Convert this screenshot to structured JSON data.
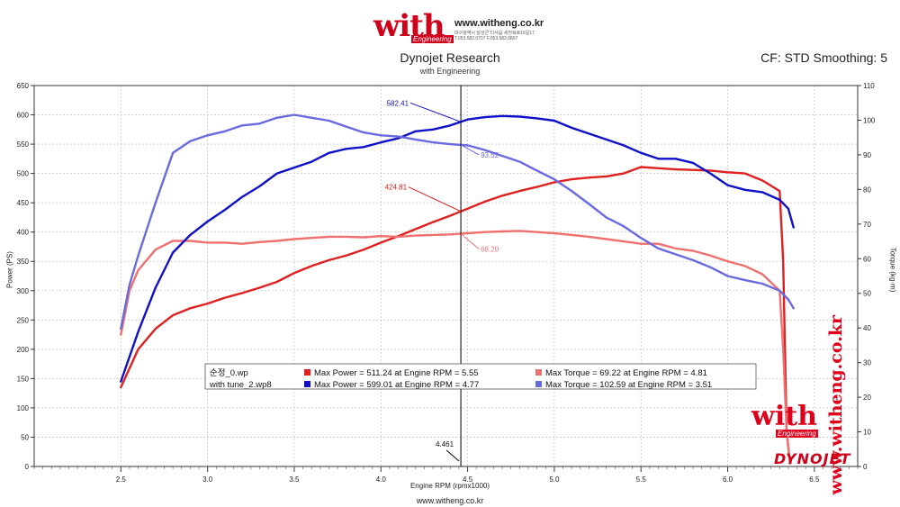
{
  "header": {
    "logo_text": "with",
    "logo_sub": "Engineering",
    "url": "www.witheng.co.kr",
    "contact_line1": "대구광역시 달성군 다사읍 세천북로16길17",
    "contact_line2": "T.053.582.0707 F.053.582.0807"
  },
  "title": "Dynojet Research",
  "subtitle": "with Engineering",
  "cf_info": "CF: STD Smoothing: 5",
  "footer_url": "www.witheng.co.kr",
  "watermark": {
    "vertical": "www.witheng.co.kr",
    "with": "with",
    "engineering": "Engineering",
    "brand": "DYNOJET"
  },
  "colors": {
    "power_before": "#e02020",
    "torque_before": "#f07070",
    "power_after": "#1010c8",
    "torque_after": "#6a6ae0"
  },
  "chart_data": {
    "type": "line",
    "xlabel": "Engine RPM (rpmx1000)",
    "ylabel_left": "Power (PS)",
    "ylabel_right": "Torque (kg·m)",
    "xlim": [
      2.0,
      6.75
    ],
    "ylim_left": [
      0,
      650
    ],
    "ylim_right": [
      0,
      110
    ],
    "x_ticks": [
      "2.5",
      "3.0",
      "3.5",
      "4.0",
      "4.5",
      "5.0",
      "5.5",
      "6.0",
      "6.5"
    ],
    "y_left_ticks": [
      "0",
      "50",
      "100",
      "150",
      "200",
      "250",
      "300",
      "350",
      "400",
      "450",
      "500",
      "550",
      "600",
      "650"
    ],
    "y_right_ticks": [
      "0",
      "10",
      "20",
      "30",
      "40",
      "50",
      "60",
      "70",
      "80",
      "90",
      "100",
      "110"
    ],
    "grid": true,
    "cursor": {
      "rpm": 4.461,
      "label": "4.461"
    },
    "annotations": [
      {
        "text": "582.41",
        "series": "power_after"
      },
      {
        "text": "424.81",
        "series": "power_before"
      },
      {
        "text": "93.52",
        "series": "torque_after"
      },
      {
        "text": "68.20",
        "series": "torque_before"
      }
    ],
    "legend": {
      "placement": "bottom-center",
      "rows": [
        {
          "file": "순정_0.wp",
          "power": "Max Power = 511.24 at Engine RPM = 5.55",
          "torque": "Max Torque = 69.22 at Engine RPM = 4.81",
          "power_color": "#e02020",
          "torque_color": "#f07070"
        },
        {
          "file": "with tune_2.wp8",
          "power": "Max Power = 599.01 at Engine RPM = 4.77",
          "torque": "Max Torque = 102.59 at Engine RPM = 3.51",
          "power_color": "#1010c8",
          "torque_color": "#6a6ae0"
        }
      ]
    },
    "series": [
      {
        "key": "power_before",
        "axis": "left",
        "x": [
          2.5,
          2.6,
          2.7,
          2.8,
          2.9,
          3.0,
          3.1,
          3.2,
          3.3,
          3.4,
          3.5,
          3.6,
          3.7,
          3.8,
          3.9,
          4.0,
          4.1,
          4.2,
          4.3,
          4.4,
          4.5,
          4.6,
          4.7,
          4.8,
          4.9,
          5.0,
          5.1,
          5.2,
          5.3,
          5.4,
          5.5,
          5.6,
          5.7,
          5.8,
          5.9,
          6.0,
          6.1,
          6.2,
          6.3,
          6.32,
          6.34,
          6.36
        ],
        "y": [
          135,
          200,
          235,
          258,
          270,
          278,
          288,
          296,
          305,
          315,
          330,
          342,
          352,
          360,
          370,
          382,
          393,
          405,
          417,
          428,
          440,
          452,
          462,
          470,
          477,
          485,
          490,
          493,
          495,
          500,
          511,
          509,
          507,
          506,
          505,
          502,
          500,
          488,
          470,
          350,
          60,
          5
        ]
      },
      {
        "key": "torque_before",
        "axis": "left",
        "x": [
          2.5,
          2.55,
          2.6,
          2.7,
          2.8,
          2.9,
          3.0,
          3.1,
          3.2,
          3.3,
          3.4,
          3.5,
          3.6,
          3.7,
          3.8,
          3.9,
          4.0,
          4.1,
          4.2,
          4.3,
          4.4,
          4.5,
          4.6,
          4.7,
          4.8,
          4.9,
          5.0,
          5.1,
          5.2,
          5.3,
          5.4,
          5.5,
          5.6,
          5.7,
          5.8,
          5.9,
          6.0,
          6.1,
          6.2,
          6.3,
          6.32,
          6.34,
          6.36
        ],
        "y": [
          225,
          300,
          335,
          370,
          385,
          385,
          382,
          382,
          380,
          383,
          385,
          388,
          390,
          392,
          392,
          391,
          393,
          392,
          394,
          395,
          396,
          398,
          400,
          401,
          402,
          400,
          398,
          395,
          392,
          388,
          384,
          380,
          380,
          372,
          368,
          360,
          350,
          342,
          328,
          300,
          200,
          60,
          5
        ]
      },
      {
        "key": "power_after",
        "axis": "left",
        "x": [
          2.5,
          2.6,
          2.7,
          2.8,
          2.9,
          3.0,
          3.1,
          3.2,
          3.3,
          3.4,
          3.5,
          3.6,
          3.7,
          3.8,
          3.9,
          4.0,
          4.1,
          4.2,
          4.3,
          4.4,
          4.5,
          4.6,
          4.7,
          4.8,
          4.9,
          5.0,
          5.1,
          5.2,
          5.3,
          5.4,
          5.5,
          5.6,
          5.7,
          5.8,
          5.9,
          6.0,
          6.1,
          6.2,
          6.3,
          6.35,
          6.38
        ],
        "y": [
          145,
          230,
          305,
          365,
          395,
          418,
          438,
          460,
          478,
          500,
          510,
          520,
          535,
          542,
          545,
          553,
          560,
          572,
          575,
          582,
          592,
          596,
          598,
          597,
          594,
          590,
          578,
          568,
          558,
          548,
          535,
          525,
          525,
          518,
          500,
          480,
          472,
          468,
          455,
          440,
          408
        ]
      },
      {
        "key": "torque_after",
        "axis": "left",
        "x": [
          2.5,
          2.55,
          2.6,
          2.7,
          2.8,
          2.9,
          3.0,
          3.1,
          3.2,
          3.3,
          3.4,
          3.5,
          3.6,
          3.7,
          3.8,
          3.9,
          4.0,
          4.1,
          4.2,
          4.3,
          4.4,
          4.5,
          4.6,
          4.7,
          4.8,
          4.9,
          5.0,
          5.1,
          5.2,
          5.3,
          5.4,
          5.5,
          5.6,
          5.7,
          5.8,
          5.9,
          6.0,
          6.1,
          6.2,
          6.3,
          6.35,
          6.38
        ],
        "y": [
          235,
          310,
          360,
          450,
          535,
          555,
          565,
          572,
          582,
          585,
          595,
          600,
          595,
          590,
          580,
          570,
          565,
          563,
          558,
          553,
          550,
          548,
          540,
          530,
          520,
          505,
          490,
          470,
          448,
          425,
          410,
          390,
          372,
          362,
          352,
          340,
          325,
          318,
          312,
          300,
          285,
          270
        ]
      }
    ]
  }
}
